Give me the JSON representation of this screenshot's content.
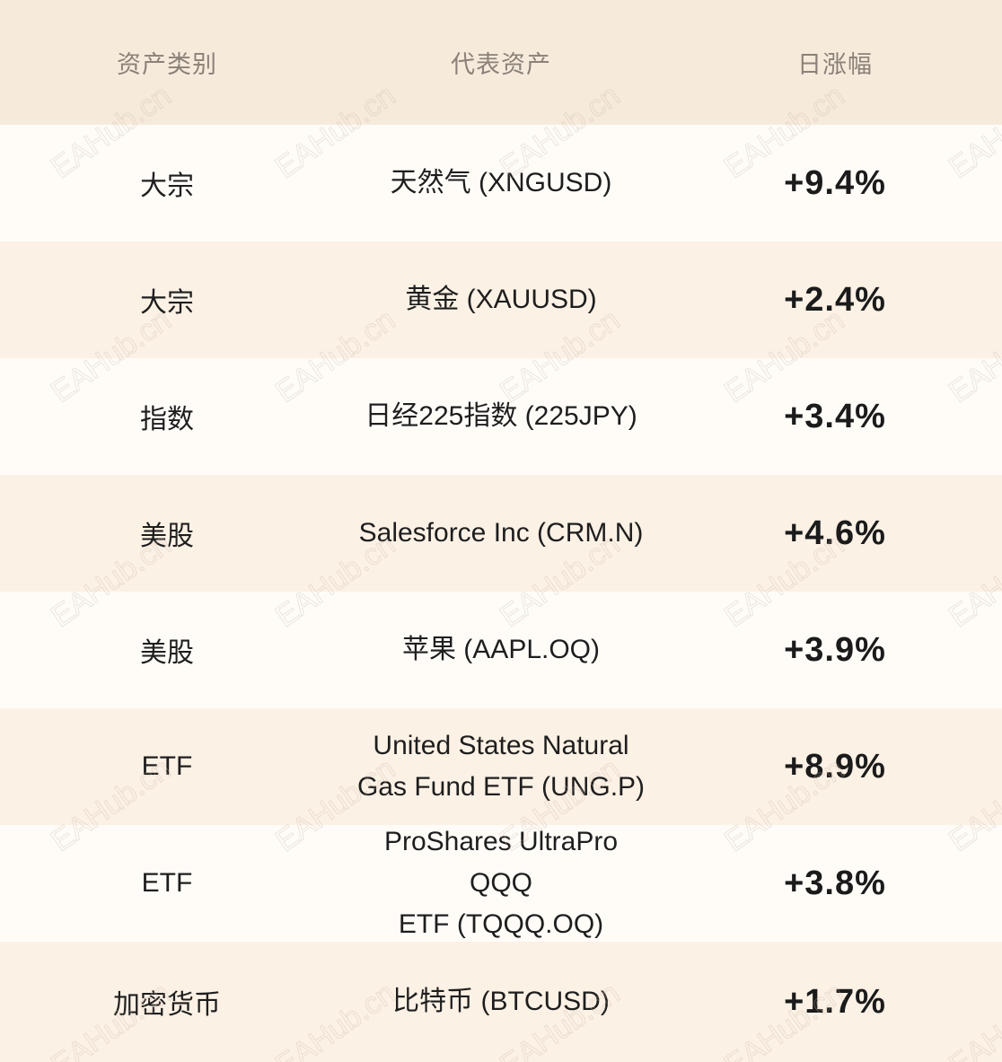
{
  "header": {
    "col_category": "资产类别",
    "col_asset": "代表资产",
    "col_change": "日涨幅"
  },
  "rows": [
    {
      "category": "大宗",
      "asset_line1": "天然气 (XNGUSD)",
      "asset_line2": "",
      "change": "+9.4%"
    },
    {
      "category": "大宗",
      "asset_line1": "黄金 (XAUUSD)",
      "asset_line2": "",
      "change": "+2.4%"
    },
    {
      "category": "指数",
      "asset_line1": "日经225指数 (225JPY)",
      "asset_line2": "",
      "change": "+3.4%"
    },
    {
      "category": "美股",
      "asset_line1": "Salesforce Inc (CRM.N)",
      "asset_line2": "",
      "change": "+4.6%"
    },
    {
      "category": "美股",
      "asset_line1": "苹果 (AAPL.OQ)",
      "asset_line2": "",
      "change": "+3.9%"
    },
    {
      "category": "ETF",
      "asset_line1": "United States Natural",
      "asset_line2": "Gas Fund ETF (UNG.P)",
      "change": "+8.9%"
    },
    {
      "category": "ETF",
      "asset_line1": "ProShares UltraPro QQQ",
      "asset_line2": "ETF (TQQQ.OQ)",
      "change": "+3.8%"
    },
    {
      "category": "加密货币",
      "asset_line1": "比特币 (BTCUSD)",
      "asset_line2": "",
      "change": "+1.7%"
    }
  ],
  "watermark": "EAHub.cn"
}
